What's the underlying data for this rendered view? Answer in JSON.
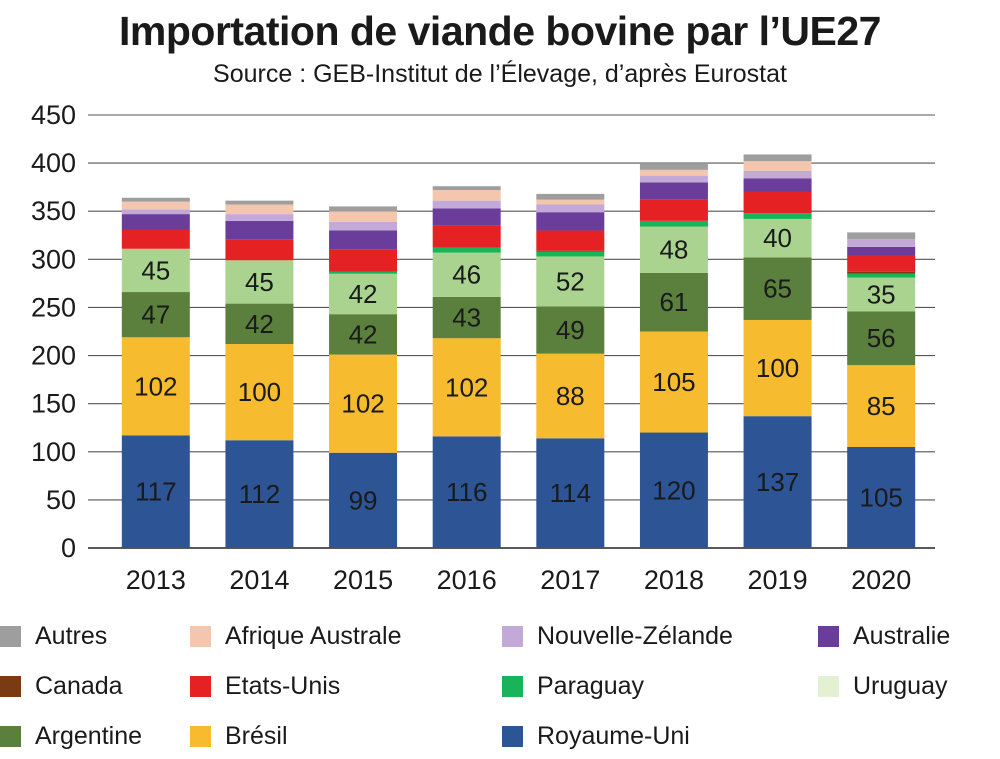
{
  "title": "Importation de viande bovine par l’UE27",
  "subtitle": "Source : GEB-Institut de l’Élevage, d’après Eurostat",
  "legend": [
    {
      "label": "Autres",
      "color": "#9e9e9e"
    },
    {
      "label": "Afrique Australe",
      "color": "#f5c6ae"
    },
    {
      "label": "Nouvelle-Zélande",
      "color": "#c3a9d8"
    },
    {
      "label": "Australie",
      "color": "#6a3d9a"
    },
    {
      "label": "Canada",
      "color": "#7a3b12"
    },
    {
      "label": "Etats-Unis",
      "color": "#e52124"
    },
    {
      "label": "Paraguay",
      "color": "#19b45a"
    },
    {
      "label": "Uruguay",
      "color": "#e3f0d2"
    },
    {
      "label": "Argentine",
      "color": "#5b7f3c"
    },
    {
      "label": "Brésil",
      "color": "#f6bb2e"
    },
    {
      "label": "Royaume-Uni",
      "color": "#2d5494"
    }
  ],
  "chart_data": {
    "type": "bar",
    "stacked": true,
    "title": "Importation de viande bovine par l’UE27",
    "subtitle": "Source : GEB-Institut de l’Élevage, d’après Eurostat",
    "xlabel": "",
    "ylabel": "",
    "ylim": [
      0,
      450
    ],
    "yticks": [
      0,
      50,
      100,
      150,
      200,
      250,
      300,
      350,
      400,
      450
    ],
    "grid": true,
    "categories": [
      "2013",
      "2014",
      "2015",
      "2016",
      "2017",
      "2018",
      "2019",
      "2020"
    ],
    "series": [
      {
        "name": "Royaume-Uni",
        "color": "#2d5494",
        "labeled": true,
        "values": [
          117,
          112,
          99,
          116,
          114,
          120,
          137,
          105
        ]
      },
      {
        "name": "Brésil",
        "color": "#f6bb2e",
        "labeled": true,
        "values": [
          102,
          100,
          102,
          102,
          88,
          105,
          100,
          85
        ]
      },
      {
        "name": "Argentine",
        "color": "#5b7f3c",
        "labeled": true,
        "values": [
          47,
          42,
          42,
          43,
          49,
          61,
          65,
          56
        ]
      },
      {
        "name": "",
        "color": "#a9d38e",
        "labeled": true,
        "values": [
          45,
          45,
          42,
          46,
          52,
          48,
          40,
          35
        ]
      },
      {
        "name": "Paraguay",
        "color": "#19b45a",
        "labeled": false,
        "values": [
          0,
          0,
          2,
          5,
          5,
          6,
          6,
          4
        ]
      },
      {
        "name": "Canada",
        "color": "#7a3b12",
        "labeled": false,
        "values": [
          0,
          0,
          0,
          0,
          1,
          0,
          0,
          2
        ]
      },
      {
        "name": "Etats-Unis",
        "color": "#e52124",
        "labeled": false,
        "values": [
          20,
          22,
          23,
          23,
          21,
          22,
          22,
          17
        ]
      },
      {
        "name": "Australie",
        "color": "#6a3d9a",
        "labeled": false,
        "values": [
          16,
          19,
          20,
          18,
          19,
          18,
          14,
          9
        ]
      },
      {
        "name": "Nouvelle-Zélande",
        "color": "#c3a9d8",
        "labeled": false,
        "values": [
          5,
          7,
          9,
          8,
          8,
          7,
          8,
          8
        ]
      },
      {
        "name": "Afrique Australe",
        "color": "#f5c6ae",
        "labeled": false,
        "values": [
          8,
          10,
          11,
          11,
          5,
          6,
          10,
          0
        ]
      },
      {
        "name": "Autres",
        "color": "#9e9e9e",
        "labeled": false,
        "values": [
          4,
          4,
          5,
          4,
          6,
          7,
          7,
          7
        ]
      }
    ]
  }
}
